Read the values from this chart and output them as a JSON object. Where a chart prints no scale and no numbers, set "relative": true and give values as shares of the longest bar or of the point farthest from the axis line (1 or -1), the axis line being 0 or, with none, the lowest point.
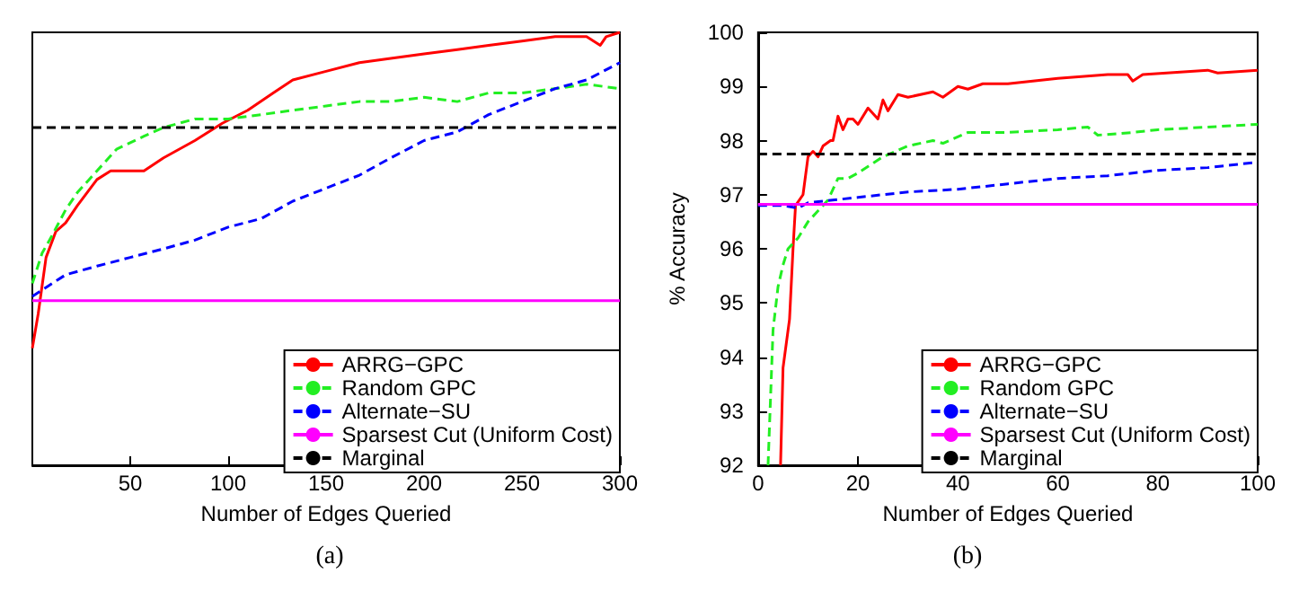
{
  "chart_data": [
    {
      "type": "line",
      "relative": true,
      "xlabel": "Number of Edges Queried",
      "annotations": [
        "(a)"
      ],
      "xlim": [
        0,
        300
      ],
      "xticks": [
        50,
        100,
        150,
        200,
        250,
        300
      ],
      "legend": "bottom right",
      "grid": false,
      "marker": "none",
      "series": [
        {
          "name": "ARRG−GPC",
          "color": "#ff0000",
          "line_style": "solid",
          "x": [
            0,
            3,
            7,
            12,
            17,
            23,
            33,
            40,
            50,
            57,
            67,
            83,
            97,
            110,
            123,
            133,
            150,
            167,
            183,
            200,
            217,
            233,
            250,
            267,
            283,
            290,
            293,
            300
          ],
          "values": [
            0.27,
            0.35,
            0.48,
            0.54,
            0.56,
            0.6,
            0.66,
            0.68,
            0.68,
            0.68,
            0.71,
            0.75,
            0.79,
            0.82,
            0.86,
            0.89,
            0.91,
            0.93,
            0.94,
            0.95,
            0.96,
            0.97,
            0.98,
            0.99,
            0.99,
            0.97,
            0.99,
            1
          ]
        },
        {
          "name": "Random GPC",
          "color": "#22ee22",
          "line_style": "dashed",
          "x": [
            0,
            5,
            10,
            17,
            23,
            33,
            43,
            57,
            67,
            83,
            100,
            117,
            133,
            150,
            167,
            183,
            200,
            217,
            233,
            250,
            267,
            283,
            300
          ],
          "values": [
            0.42,
            0.49,
            0.53,
            0.59,
            0.63,
            0.68,
            0.73,
            0.76,
            0.78,
            0.8,
            0.8,
            0.81,
            0.82,
            0.83,
            0.84,
            0.84,
            0.85,
            0.84,
            0.86,
            0.86,
            0.87,
            0.88,
            0.87
          ]
        },
        {
          "name": "Alternate−SU",
          "color": "#0000ff",
          "line_style": "dashed",
          "x": [
            0,
            17,
            33,
            50,
            67,
            83,
            100,
            117,
            133,
            150,
            167,
            183,
            200,
            217,
            233,
            250,
            267,
            283,
            300
          ],
          "values": [
            0.39,
            0.44,
            0.46,
            0.48,
            0.5,
            0.52,
            0.55,
            0.57,
            0.61,
            0.64,
            0.67,
            0.71,
            0.75,
            0.77,
            0.81,
            0.84,
            0.87,
            0.89,
            0.93
          ]
        },
        {
          "name": "Sparsest Cut (Uniform Cost)",
          "color": "#ff00ff",
          "line_style": "solid",
          "x": [
            0,
            300
          ],
          "values": [
            0.38,
            0.38
          ]
        },
        {
          "name": "Marginal",
          "color": "#000000",
          "line_style": "dashed",
          "x": [
            0,
            300
          ],
          "values": [
            0.78,
            0.78
          ]
        }
      ]
    },
    {
      "type": "line",
      "xlabel": "Number of Edges Queried",
      "ylabel": "% Accuracy",
      "annotations": [
        "(b)"
      ],
      "xlim": [
        0,
        100
      ],
      "xticks": [
        0,
        20,
        40,
        60,
        80,
        100
      ],
      "ylim": [
        92,
        100
      ],
      "yticks": [
        92,
        93,
        94,
        95,
        96,
        97,
        98,
        99,
        100
      ],
      "legend": "bottom right",
      "grid": false,
      "marker": "none",
      "series": [
        {
          "name": "ARRG−GPC",
          "color": "#ff0000",
          "line_style": "solid",
          "x": [
            4.5,
            5,
            6.3,
            7,
            7.5,
            9,
            10,
            11,
            12,
            13,
            14.5,
            15,
            16,
            17,
            18,
            19,
            20,
            22,
            24,
            25,
            26,
            28,
            30,
            35,
            37,
            40,
            42,
            45,
            50,
            60,
            70,
            74,
            75,
            77,
            90,
            92,
            100
          ],
          "values": [
            92,
            93.8,
            94.7,
            96,
            96.8,
            97,
            97.7,
            97.8,
            97.7,
            97.9,
            98,
            98,
            98.45,
            98.2,
            98.4,
            98.4,
            98.3,
            98.6,
            98.4,
            98.75,
            98.55,
            98.85,
            98.8,
            98.9,
            98.8,
            99,
            98.95,
            99.05,
            99.05,
            99.15,
            99.22,
            99.22,
            99.1,
            99.22,
            99.3,
            99.25,
            99.3
          ]
        },
        {
          "name": "Random GPC",
          "color": "#22ee22",
          "line_style": "dashed",
          "x": [
            2,
            3,
            4,
            5,
            6,
            8,
            10,
            12,
            14,
            16,
            18,
            20,
            25,
            30,
            35,
            37,
            42,
            50,
            60,
            66,
            68,
            75,
            80,
            90,
            100
          ],
          "values": [
            92,
            94.5,
            95.3,
            95.7,
            96,
            96.2,
            96.5,
            96.7,
            96.9,
            97.3,
            97.3,
            97.4,
            97.7,
            97.9,
            98,
            97.95,
            98.15,
            98.15,
            98.2,
            98.25,
            98.1,
            98.15,
            98.2,
            98.25,
            98.3
          ]
        },
        {
          "name": "Alternate−SU",
          "color": "#0000ff",
          "line_style": "dashed",
          "x": [
            0,
            5,
            8,
            10,
            20,
            30,
            40,
            50,
            60,
            70,
            80,
            90,
            100
          ],
          "values": [
            96.8,
            96.8,
            96.75,
            96.85,
            96.95,
            97.05,
            97.1,
            97.2,
            97.3,
            97.35,
            97.45,
            97.5,
            97.6
          ]
        },
        {
          "name": "Sparsest Cut (Uniform Cost)",
          "color": "#ff00ff",
          "line_style": "solid",
          "x": [
            0,
            100
          ],
          "values": [
            96.82,
            96.82
          ]
        },
        {
          "name": "Marginal",
          "color": "#000000",
          "line_style": "dashed",
          "x": [
            0,
            100
          ],
          "values": [
            97.75,
            97.75
          ]
        }
      ]
    }
  ]
}
